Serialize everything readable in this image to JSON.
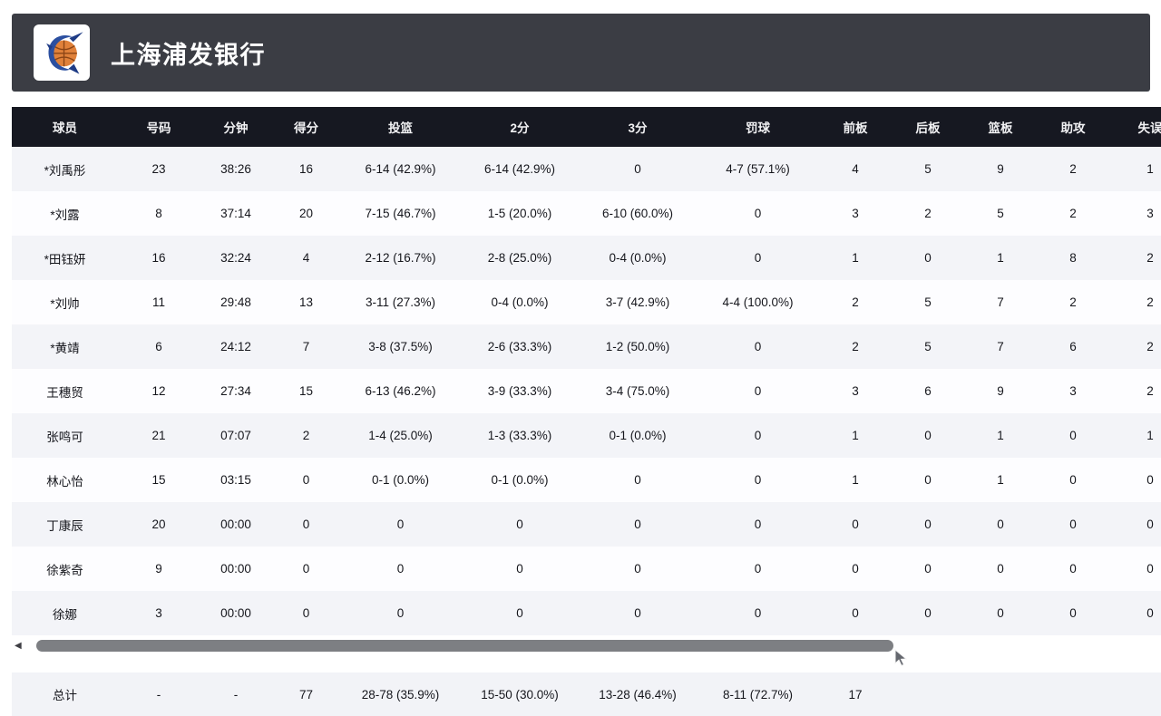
{
  "app": {
    "team_name": "上海浦发银行",
    "logo_icon": "swordfish-basketball-logo"
  },
  "colors": {
    "titlebar_bg": "#3b3d44",
    "table_header_bg": "#161821",
    "row_alt_bg": "#f3f4f8",
    "row_bg": "#fdfdff",
    "total_row_bg": "#f2f3f7",
    "scrollbar_thumb": "#7d7f83",
    "logo_basketball": "#e0813a",
    "logo_fish": "#2b4fa0"
  },
  "table": {
    "columns": [
      {
        "key": "player",
        "label": "球员"
      },
      {
        "key": "number",
        "label": "号码"
      },
      {
        "key": "minutes",
        "label": "分钟"
      },
      {
        "key": "points",
        "label": "得分"
      },
      {
        "key": "fg",
        "label": "投篮"
      },
      {
        "key": "two-pt",
        "label": "2分"
      },
      {
        "key": "three-pt",
        "label": "3分"
      },
      {
        "key": "ft",
        "label": "罚球"
      },
      {
        "key": "oreb",
        "label": "前板"
      },
      {
        "key": "dreb",
        "label": "后板"
      },
      {
        "key": "reb",
        "label": "篮板"
      },
      {
        "key": "ast",
        "label": "助攻"
      },
      {
        "key": "tov",
        "label": "失误"
      }
    ],
    "rows": [
      [
        "*刘禹彤",
        "23",
        "38:26",
        "16",
        "6-14 (42.9%)",
        "6-14 (42.9%)",
        "0",
        "4-7 (57.1%)",
        "4",
        "5",
        "9",
        "2",
        "1"
      ],
      [
        "*刘露",
        "8",
        "37:14",
        "20",
        "7-15 (46.7%)",
        "1-5 (20.0%)",
        "6-10 (60.0%)",
        "0",
        "3",
        "2",
        "5",
        "2",
        "3"
      ],
      [
        "*田钰妍",
        "16",
        "32:24",
        "4",
        "2-12 (16.7%)",
        "2-8 (25.0%)",
        "0-4 (0.0%)",
        "0",
        "1",
        "0",
        "1",
        "8",
        "2"
      ],
      [
        "*刘帅",
        "11",
        "29:48",
        "13",
        "3-11 (27.3%)",
        "0-4 (0.0%)",
        "3-7 (42.9%)",
        "4-4 (100.0%)",
        "2",
        "5",
        "7",
        "2",
        "2"
      ],
      [
        "*黄靖",
        "6",
        "24:12",
        "7",
        "3-8 (37.5%)",
        "2-6 (33.3%)",
        "1-2 (50.0%)",
        "0",
        "2",
        "5",
        "7",
        "6",
        "2"
      ],
      [
        "王穗贸",
        "12",
        "27:34",
        "15",
        "6-13 (46.2%)",
        "3-9 (33.3%)",
        "3-4 (75.0%)",
        "0",
        "3",
        "6",
        "9",
        "3",
        "2"
      ],
      [
        "张鸣可",
        "21",
        "07:07",
        "2",
        "1-4 (25.0%)",
        "1-3 (33.3%)",
        "0-1 (0.0%)",
        "0",
        "1",
        "0",
        "1",
        "0",
        "1"
      ],
      [
        "林心怡",
        "15",
        "03:15",
        "0",
        "0-1 (0.0%)",
        "0-1 (0.0%)",
        "0",
        "0",
        "1",
        "0",
        "1",
        "0",
        "0"
      ],
      [
        "丁康辰",
        "20",
        "00:00",
        "0",
        "0",
        "0",
        "0",
        "0",
        "0",
        "0",
        "0",
        "0",
        "0"
      ],
      [
        "徐紫奇",
        "9",
        "00:00",
        "0",
        "0",
        "0",
        "0",
        "0",
        "0",
        "0",
        "0",
        "0",
        "0"
      ],
      [
        "徐娜",
        "3",
        "00:00",
        "0",
        "0",
        "0",
        "0",
        "0",
        "0",
        "0",
        "0",
        "0",
        "0"
      ]
    ],
    "total_row": [
      "总计",
      "-",
      "-",
      "77",
      "28-78 (35.9%)",
      "15-50 (30.0%)",
      "13-28 (46.4%)",
      "8-11 (72.7%)",
      "17",
      "",
      "",
      "",
      ""
    ]
  },
  "scrollbar": {
    "direction": "horizontal",
    "left_arrow": "◀"
  }
}
